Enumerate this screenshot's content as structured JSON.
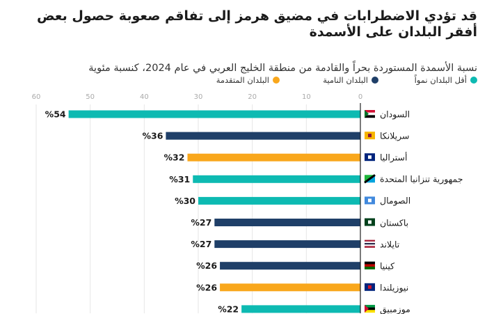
{
  "title": "قد تؤدي الاضطرابات في مضيق هرمز إلى تفاقم صعوبة حصول بعض أفقر البلدان على الأسمدة",
  "subtitle": "نسبة الأسمدة المستوردة بحراً والقادمة من منطقة الخليج العربي في عام 2024، كنسبة مئوية",
  "colors": {
    "least_developed": "#0dbab2",
    "developing": "#1f3f68",
    "developed": "#f9a71c"
  },
  "legend": [
    {
      "label": "أقل البلدان نمواً",
      "key": "least_developed"
    },
    {
      "label": "البلدان النامية",
      "key": "developing"
    },
    {
      "label": "البلدان المتقدمة",
      "key": "developed"
    }
  ],
  "chart_data": {
    "type": "bar",
    "orientation": "horizontal",
    "direction": "right-to-left",
    "title": "قد تؤدي الاضطرابات في مضيق هرمز إلى تفاقم صعوبة حصول بعض أفقر البلدان على الأسمدة",
    "subtitle": "نسبة الأسمدة المستوردة بحراً والقادمة من منطقة الخليج العربي في عام 2024، كنسبة مئوية",
    "xlim": [
      0,
      60
    ],
    "xticks": [
      0,
      10,
      20,
      30,
      40,
      50,
      60
    ],
    "grid": true,
    "legend_position": "top",
    "value_format": "%{v}",
    "categories": [
      "السودان",
      "سريلانكا",
      "أستراليا",
      "جمهورية تنزانيا المتحدة",
      "الصومال",
      "باكستان",
      "تايلاند",
      "كينيا",
      "نيوزيلندا",
      "موزمبيق"
    ],
    "values": [
      54,
      36,
      32,
      31,
      30,
      27,
      27,
      26,
      26,
      22
    ],
    "groups": [
      "least_developed",
      "developing",
      "developed",
      "least_developed",
      "least_developed",
      "developing",
      "developing",
      "developing",
      "developed",
      "least_developed"
    ],
    "flags": [
      "sudan-flag",
      "sri-lanka-flag",
      "australia-flag",
      "tanzania-flag",
      "somalia-flag",
      "pakistan-flag",
      "thailand-flag",
      "kenya-flag",
      "new-zealand-flag",
      "mozambique-flag"
    ]
  }
}
